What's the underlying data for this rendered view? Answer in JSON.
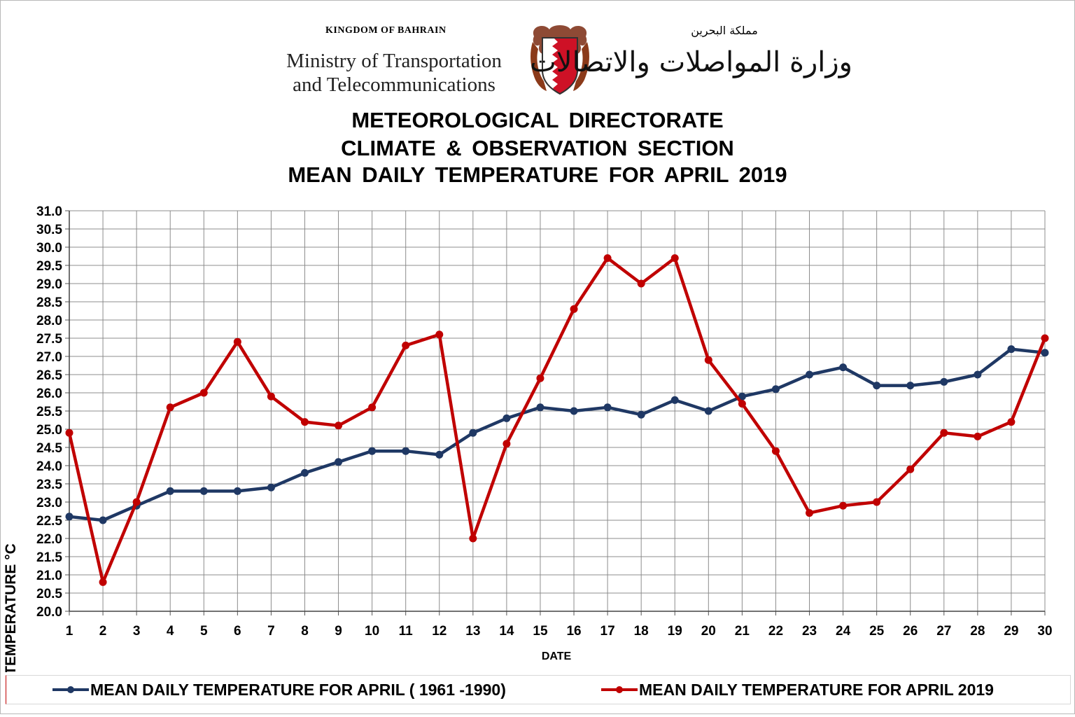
{
  "header": {
    "kingdom": "KINGDOM OF BAHRAIN",
    "ministry_line1": "Ministry of Transportation",
    "ministry_line2": "and Telecommunications",
    "arabic_small": "مملكة البحرين",
    "arabic_main": "وزارة المواصلات والاتصالات"
  },
  "titles": [
    "METEOROLOGICAL  DIRECTORATE",
    "CLIMATE  &  OBSERVATION  SECTION",
    "MEAN  DAILY  TEMPERATURE  FOR  APRIL  2019"
  ],
  "colors": {
    "series_normal": "#1f3864",
    "series_2019": "#c00000",
    "grid": "#8c8c8c"
  },
  "chart_data": {
    "type": "line",
    "xlabel": "DATE",
    "ylabel": "TEMPERATURE °C",
    "ylim": [
      20.0,
      31.0
    ],
    "ytick_step": 0.5,
    "grid": true,
    "legend_position": "bottom",
    "x": [
      1,
      2,
      3,
      4,
      5,
      6,
      7,
      8,
      9,
      10,
      11,
      12,
      13,
      14,
      15,
      16,
      17,
      18,
      19,
      20,
      21,
      22,
      23,
      24,
      25,
      26,
      27,
      28,
      29,
      30
    ],
    "series": [
      {
        "name": "MEAN DAILY TEMPERATURE FOR APRIL ( 1961 -1990)",
        "color": "#1f3864",
        "values": [
          22.6,
          22.5,
          22.9,
          23.3,
          23.3,
          23.3,
          23.4,
          23.8,
          24.1,
          24.4,
          24.4,
          24.3,
          24.9,
          25.3,
          25.6,
          25.5,
          25.6,
          25.4,
          25.8,
          25.5,
          25.9,
          26.1,
          26.5,
          26.7,
          26.2,
          26.2,
          26.3,
          26.5,
          27.2,
          27.1
        ]
      },
      {
        "name": "MEAN DAILY TEMPERATURE FOR APRIL 2019",
        "color": "#c00000",
        "values": [
          24.9,
          20.8,
          23.0,
          25.6,
          26.0,
          27.4,
          25.9,
          25.2,
          25.1,
          25.6,
          27.3,
          27.6,
          22.0,
          24.6,
          26.4,
          28.3,
          29.7,
          29.0,
          29.7,
          26.9,
          25.7,
          24.4,
          22.7,
          22.9,
          23.0,
          23.9,
          24.9,
          24.8,
          25.2,
          27.5
        ]
      }
    ]
  }
}
